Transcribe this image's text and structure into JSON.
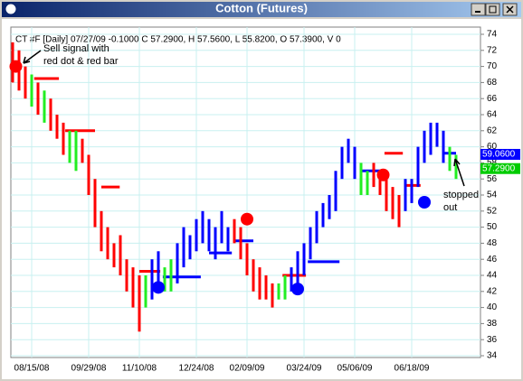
{
  "window": {
    "title": "Cotton (Futures)"
  },
  "chart_data": {
    "type": "hl-bars",
    "info": "CT #F [Daily] 07/27/09 -0.1000 C 57.2900, H 57.5600, L 55.8200, O 57.3900, V 0",
    "high": [
      73,
      72,
      70,
      69,
      68,
      67,
      66,
      64,
      63,
      62,
      62,
      61,
      59,
      56,
      52,
      50,
      48,
      49,
      46,
      45,
      44,
      44,
      46,
      47,
      45,
      46,
      48,
      50,
      49,
      51,
      52,
      51,
      50,
      52,
      50,
      51,
      50,
      48,
      46,
      45,
      44,
      43,
      43,
      44,
      45,
      47,
      48,
      50,
      52,
      53,
      54,
      57,
      60,
      61,
      60,
      58,
      57,
      58,
      57,
      56,
      55,
      54,
      56,
      56,
      60,
      62,
      63,
      63,
      62,
      60,
      59
    ],
    "low": [
      68,
      67,
      66,
      65,
      64,
      63,
      62,
      61,
      59,
      58,
      57,
      58,
      54,
      50,
      47,
      46,
      45,
      44,
      42,
      40,
      37,
      40,
      41,
      42,
      42,
      42,
      43,
      45,
      46,
      47,
      48,
      47,
      46,
      48,
      47,
      48,
      46,
      44,
      42,
      41,
      41,
      40,
      41,
      41,
      42,
      43,
      44,
      46,
      48,
      50,
      51,
      52,
      56,
      58,
      56,
      54,
      54,
      55,
      54,
      52,
      51,
      50,
      52,
      53,
      55,
      58,
      59,
      60,
      58,
      57,
      56
    ],
    "colors": [
      "#ff0000",
      "#ff0000",
      "#ff0000",
      "#22ee22",
      "#ff0000",
      "#22ee22",
      "#ff0000",
      "#ff0000",
      "#ff0000",
      "#22ee22",
      "#22ee22",
      "#ff0000",
      "#ff0000",
      "#ff0000",
      "#ff0000",
      "#ff0000",
      "#ff0000",
      "#ff0000",
      "#ff0000",
      "#ff0000",
      "#ff0000",
      "#22ee22",
      "#0000ff",
      "#0000ff",
      "#22ee22",
      "#22ee22",
      "#0000ff",
      "#0000ff",
      "#0000ff",
      "#0000ff",
      "#0000ff",
      "#0000ff",
      "#0000ff",
      "#0000ff",
      "#0000ff",
      "#ff0000",
      "#ff0000",
      "#ff0000",
      "#ff0000",
      "#ff0000",
      "#ff0000",
      "#ff0000",
      "#22ee22",
      "#22ee22",
      "#0000ff",
      "#0000ff",
      "#0000ff",
      "#0000ff",
      "#0000ff",
      "#0000ff",
      "#0000ff",
      "#0000ff",
      "#0000ff",
      "#0000ff",
      "#0000ff",
      "#22ee22",
      "#22ee22",
      "#ff0000",
      "#ff0000",
      "#ff0000",
      "#ff0000",
      "#ff0000",
      "#0000ff",
      "#0000ff",
      "#0000ff",
      "#0000ff",
      "#0000ff",
      "#0000ff",
      "#0000ff",
      "#22ee22",
      "#22ee22"
    ],
    "signals": [
      {
        "x": 0.5,
        "y": 70,
        "color": "#ff0000"
      },
      {
        "x": 23,
        "y": 42.5,
        "color": "#0000ff"
      },
      {
        "x": 37,
        "y": 51,
        "color": "#ff0000"
      },
      {
        "x": 45,
        "y": 42.3,
        "color": "#0000ff"
      },
      {
        "x": 58.5,
        "y": 56.5,
        "color": "#ff0000"
      },
      {
        "x": 65,
        "y": 53.1,
        "color": "#0000ff"
      }
    ],
    "stops": [
      {
        "from": 3.4,
        "to": 7.3,
        "value": 68.5,
        "color": "#ff0000"
      },
      {
        "from": 8.3,
        "to": 13,
        "value": 62,
        "color": "#ff0000"
      },
      {
        "from": 14,
        "to": 16.9,
        "value": 55,
        "color": "#ff0000"
      },
      {
        "from": 20,
        "to": 23.3,
        "value": 44.5,
        "color": "#ff0000"
      },
      {
        "from": 23.7,
        "to": 29.7,
        "value": 43.8,
        "color": "#0000ff"
      },
      {
        "from": 31,
        "to": 34.6,
        "value": 46.8,
        "color": "#0000ff"
      },
      {
        "from": 34.9,
        "to": 38,
        "value": 48.3,
        "color": "#0000ff"
      },
      {
        "from": 42.6,
        "to": 46.3,
        "value": 44,
        "color": "#ff0000"
      },
      {
        "from": 46.6,
        "to": 51.6,
        "value": 45.7,
        "color": "#0000ff"
      },
      {
        "from": 55.1,
        "to": 58,
        "value": 57,
        "color": "#0000ff"
      },
      {
        "from": 58.7,
        "to": 61.6,
        "value": 59.2,
        "color": "#ff0000"
      },
      {
        "from": 62,
        "to": 64.4,
        "value": 55.2,
        "color": "#ff0000"
      },
      {
        "from": 68,
        "to": 70,
        "value": 59.2,
        "color": "#0000ff"
      }
    ],
    "price_tags": [
      {
        "label": "59.0600",
        "value": 59.06,
        "color": "#0000ff",
        "text_color": "#ffffff"
      },
      {
        "label": "57.2900",
        "value": 57.29,
        "color": "#00cc00",
        "text_color": "#ffffff"
      }
    ],
    "annotations": [
      {
        "text": [
          "Sell signal with",
          "red dot & red bar"
        ]
      },
      {
        "text": [
          "stopped",
          "out"
        ]
      }
    ],
    "xlim": [
      0,
      73
    ],
    "ylim": [
      34,
      74
    ],
    "xticks": [
      {
        "value": 3,
        "label": "08/15/08"
      },
      {
        "value": 12,
        "label": "09/29/08"
      },
      {
        "value": 20,
        "label": "11/10/08"
      },
      {
        "value": 29,
        "label": "12/24/08"
      },
      {
        "value": 37,
        "label": "02/09/09"
      },
      {
        "value": 46,
        "label": "03/24/09"
      },
      {
        "value": 54,
        "label": "05/06/09"
      },
      {
        "value": 63,
        "label": "06/18/09"
      }
    ],
    "yticks": [
      34,
      36,
      38,
      40,
      42,
      44,
      46,
      48,
      50,
      52,
      54,
      56,
      58,
      60,
      62,
      64,
      66,
      68,
      70,
      72,
      74
    ],
    "grid": true
  }
}
